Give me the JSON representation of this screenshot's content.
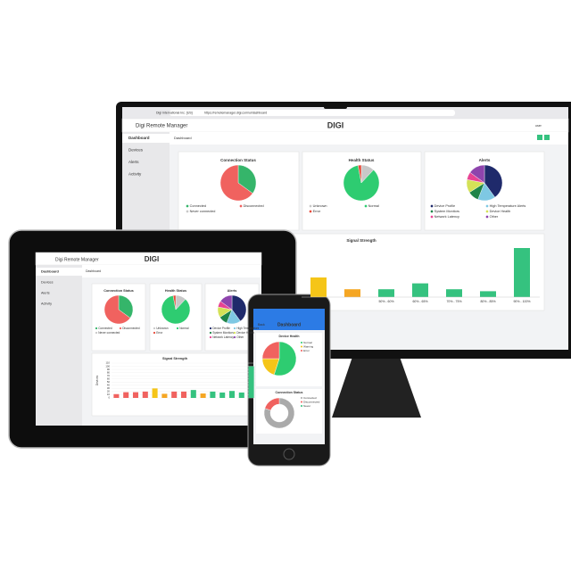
{
  "browser": {
    "site": "Digi International Inc. [US]",
    "url": "https://remotemanager.digi.com/ui/dashboard"
  },
  "app": {
    "name": "Digi Remote Manager",
    "logo": "DIGI",
    "user": "user",
    "page": "Dashboard",
    "nav": [
      "Dashboard",
      "Devices",
      "Alerts",
      "Activity"
    ]
  },
  "connection_status": {
    "title": "Connection Status",
    "labels": [
      "Connected",
      "Disconnected",
      "Never connected"
    ],
    "values": [
      35,
      65,
      0
    ],
    "colors": [
      "#35b56a",
      "#f0625f",
      "#c8c8c8"
    ]
  },
  "health_status": {
    "title": "Health Status",
    "labels": [
      "Unknown",
      "Normal",
      "Error"
    ],
    "values": [
      12,
      85,
      3
    ],
    "colors": [
      "#c8c8c8",
      "#2ecc71",
      "#e74c3c"
    ]
  },
  "alerts": {
    "title": "Alerts",
    "labels": [
      "Device Profile",
      "High Temperature Alerts",
      "System Monitors",
      "Device Health",
      "Network Latency",
      "Other"
    ],
    "values": [
      40,
      16,
      10,
      12,
      7,
      15
    ],
    "colors": [
      "#1f2a6b",
      "#7ec8e3",
      "#1e8449",
      "#d4e157",
      "#e84393",
      "#8e44ad"
    ]
  },
  "signal_strength": {
    "title": "Signal Strength",
    "categories": [
      null,
      null,
      "50% - 60%",
      "60% - 65%",
      "70% - 75%",
      "80% - 85%",
      "90% - 100%"
    ],
    "values": [
      10,
      4,
      4,
      7,
      4,
      3,
      25
    ],
    "colors": [
      "#f5c518",
      "#f5a623",
      "#35c27f",
      "#35c27f",
      "#35c27f",
      "#35c27f",
      "#35c27f"
    ]
  },
  "tablet_signal": {
    "title": "Signal Strength",
    "y_label": "Devices",
    "ylim": [
      0,
      110
    ],
    "yticks": [
      0,
      10,
      20,
      30,
      40,
      50,
      60,
      70,
      80,
      90,
      100,
      110
    ],
    "values": [
      12,
      18,
      18,
      20,
      30,
      13,
      20,
      20,
      25,
      14,
      20,
      17,
      22,
      17,
      100
    ],
    "colors": [
      "#f0625f",
      "#f0625f",
      "#f0625f",
      "#f0625f",
      "#f5c518",
      "#f5a623",
      "#f0625f",
      "#f0625f",
      "#35c27f",
      "#f5a623",
      "#35c27f",
      "#35c27f",
      "#35c27f",
      "#35c27f",
      "#35c27f"
    ]
  },
  "phone": {
    "title": "Dashboard",
    "back": "Back",
    "device_health": {
      "title": "Device Health",
      "labels": [
        "Normal",
        "Warning",
        "Error"
      ],
      "values": [
        55,
        20,
        25
      ],
      "colors": [
        "#2ecc71",
        "#f5c518",
        "#f0625f"
      ]
    },
    "connection": {
      "title": "Connection Status",
      "labels": [
        "Connected",
        "Disconnected",
        "Never"
      ],
      "values": [
        80,
        20,
        0
      ],
      "colors": [
        "#aaaaaa",
        "#f0625f",
        "#35c27f"
      ]
    }
  }
}
